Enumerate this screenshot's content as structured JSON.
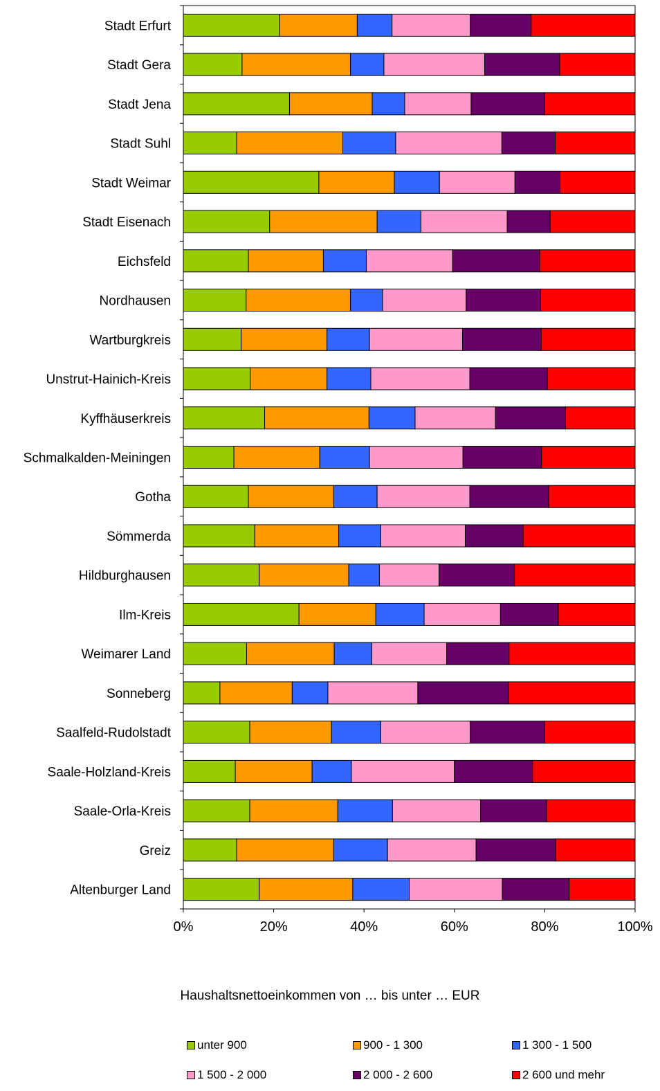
{
  "chart_data": {
    "type": "bar",
    "orientation": "horizontal",
    "stacked": "percent",
    "categories": [
      "Stadt Erfurt",
      "Stadt Gera",
      "Stadt Jena",
      "Stadt Suhl",
      "Stadt Weimar",
      "Stadt Eisenach",
      "Eichsfeld",
      "Nordhausen",
      "Wartburgkreis",
      "Unstrut-Hainich-Kreis",
      "Kyffhäuserkreis",
      "Schmalkalden-Meiningen",
      "Gotha",
      "Sömmerda",
      "Hildburghausen",
      "Ilm-Kreis",
      "Weimarer Land",
      "Sonneberg",
      "Saalfeld-Rudolstadt",
      "Saale-Holzland-Kreis",
      "Saale-Orla-Kreis",
      "Greiz",
      "Altenburger Land"
    ],
    "series": [
      {
        "name": "unter 900",
        "color": "#99cc00",
        "values": [
          21.3,
          13.0,
          23.5,
          11.8,
          30.0,
          19.1,
          14.4,
          13.9,
          12.8,
          14.8,
          18.0,
          11.2,
          14.4,
          15.8,
          16.8,
          25.6,
          14.0,
          8.1,
          14.7,
          11.5,
          14.7,
          11.8,
          16.8
        ]
      },
      {
        "name": "900 - 1 300",
        "color": "#ff9900",
        "values": [
          17.2,
          24.0,
          18.3,
          23.5,
          16.7,
          23.8,
          16.6,
          23.1,
          19.0,
          17.0,
          23.1,
          19.0,
          18.9,
          18.6,
          19.8,
          17.0,
          19.4,
          16.0,
          18.1,
          17.0,
          19.5,
          21.5,
          20.7
        ]
      },
      {
        "name": "1 300 - 1 500",
        "color": "#3366ff",
        "values": [
          7.7,
          7.4,
          7.2,
          11.7,
          10.0,
          9.7,
          9.5,
          7.1,
          9.4,
          9.7,
          10.2,
          11.0,
          9.6,
          9.3,
          6.8,
          10.7,
          8.3,
          7.9,
          10.9,
          8.7,
          12.1,
          11.9,
          12.5
        ]
      },
      {
        "name": "1 500 - 2 000",
        "color": "#ff99cc",
        "values": [
          17.3,
          22.3,
          14.7,
          23.5,
          16.7,
          19.1,
          19.1,
          18.5,
          20.6,
          21.9,
          17.8,
          20.7,
          20.5,
          18.7,
          13.2,
          16.9,
          16.6,
          19.9,
          19.8,
          22.8,
          19.5,
          19.6,
          20.6
        ]
      },
      {
        "name": "2 000 - 2 600",
        "color": "#660066",
        "values": [
          13.5,
          16.6,
          16.3,
          11.8,
          10.0,
          9.5,
          19.3,
          16.5,
          17.4,
          17.2,
          15.5,
          17.4,
          17.5,
          12.8,
          16.7,
          12.8,
          13.8,
          20.1,
          16.5,
          17.3,
          14.6,
          17.6,
          14.8
        ]
      },
      {
        "name": "2 600 und mehr",
        "color": "#ff0000",
        "values": [
          23.0,
          16.7,
          20.0,
          17.7,
          16.6,
          18.8,
          21.1,
          20.9,
          20.8,
          19.4,
          15.4,
          20.7,
          19.1,
          24.8,
          26.7,
          17.0,
          27.9,
          28.0,
          20.0,
          22.7,
          19.6,
          17.6,
          14.6
        ]
      }
    ],
    "x_ticks": [
      "0%",
      "20%",
      "40%",
      "60%",
      "80%",
      "100%"
    ],
    "xlim": [
      0,
      100
    ],
    "xlabel": "Haushaltsnettoeinkommen von … bis unter … EUR",
    "grid": false,
    "legend_position": "bottom"
  }
}
